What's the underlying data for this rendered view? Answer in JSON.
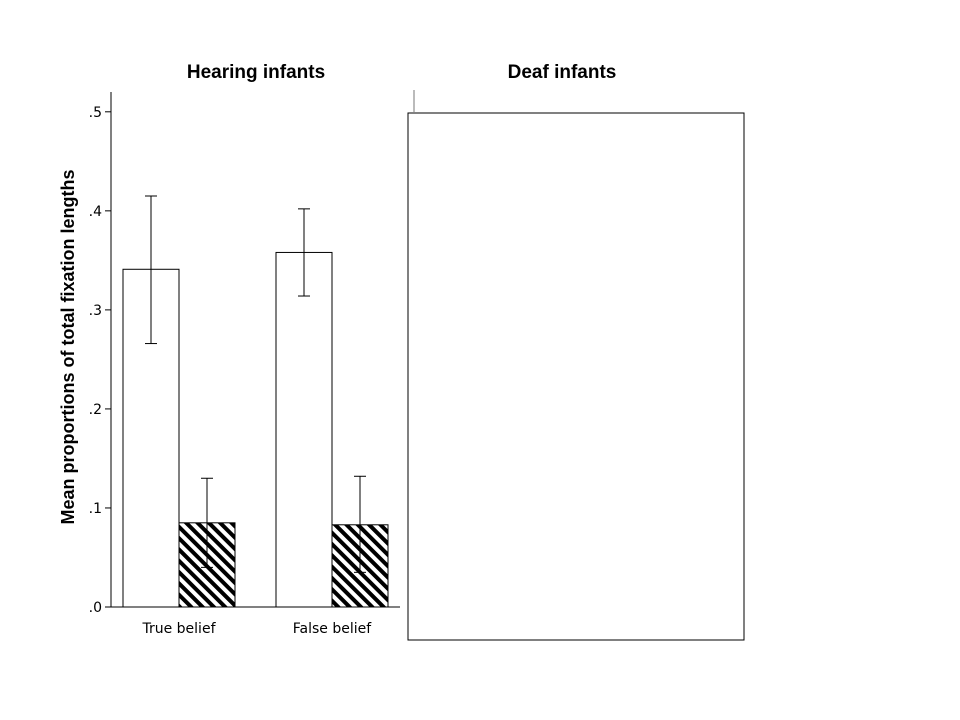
{
  "chart_data": {
    "type": "bar",
    "ylabel": "Mean proportions of total fixation lengths",
    "ylim": [
      0,
      0.52
    ],
    "yticks": [
      {
        "value": 0.0,
        "label": ".0"
      },
      {
        "value": 0.1,
        "label": ".1"
      },
      {
        "value": 0.2,
        "label": ".2"
      },
      {
        "value": 0.3,
        "label": ".3"
      },
      {
        "value": 0.4,
        "label": ".4"
      },
      {
        "value": 0.5,
        "label": ".5"
      }
    ],
    "colors": {
      "series_0_fill": "#ffffff",
      "series_1_pattern": "diagonal-hatch",
      "stroke": "#000000"
    },
    "panels": [
      {
        "title": "Hearing infants",
        "categories": [
          "True belief",
          "False belief"
        ],
        "series": [
          {
            "values": [
              0.341,
              0.358
            ],
            "error_low": [
              0.266,
              0.314
            ],
            "error_high": [
              0.415,
              0.402
            ]
          },
          {
            "values": [
              0.085,
              0.083
            ],
            "error_low": [
              0.04,
              0.035
            ],
            "error_high": [
              0.13,
              0.132
            ]
          }
        ]
      },
      {
        "title": "Deaf infants",
        "categories": [],
        "series": []
      }
    ]
  }
}
